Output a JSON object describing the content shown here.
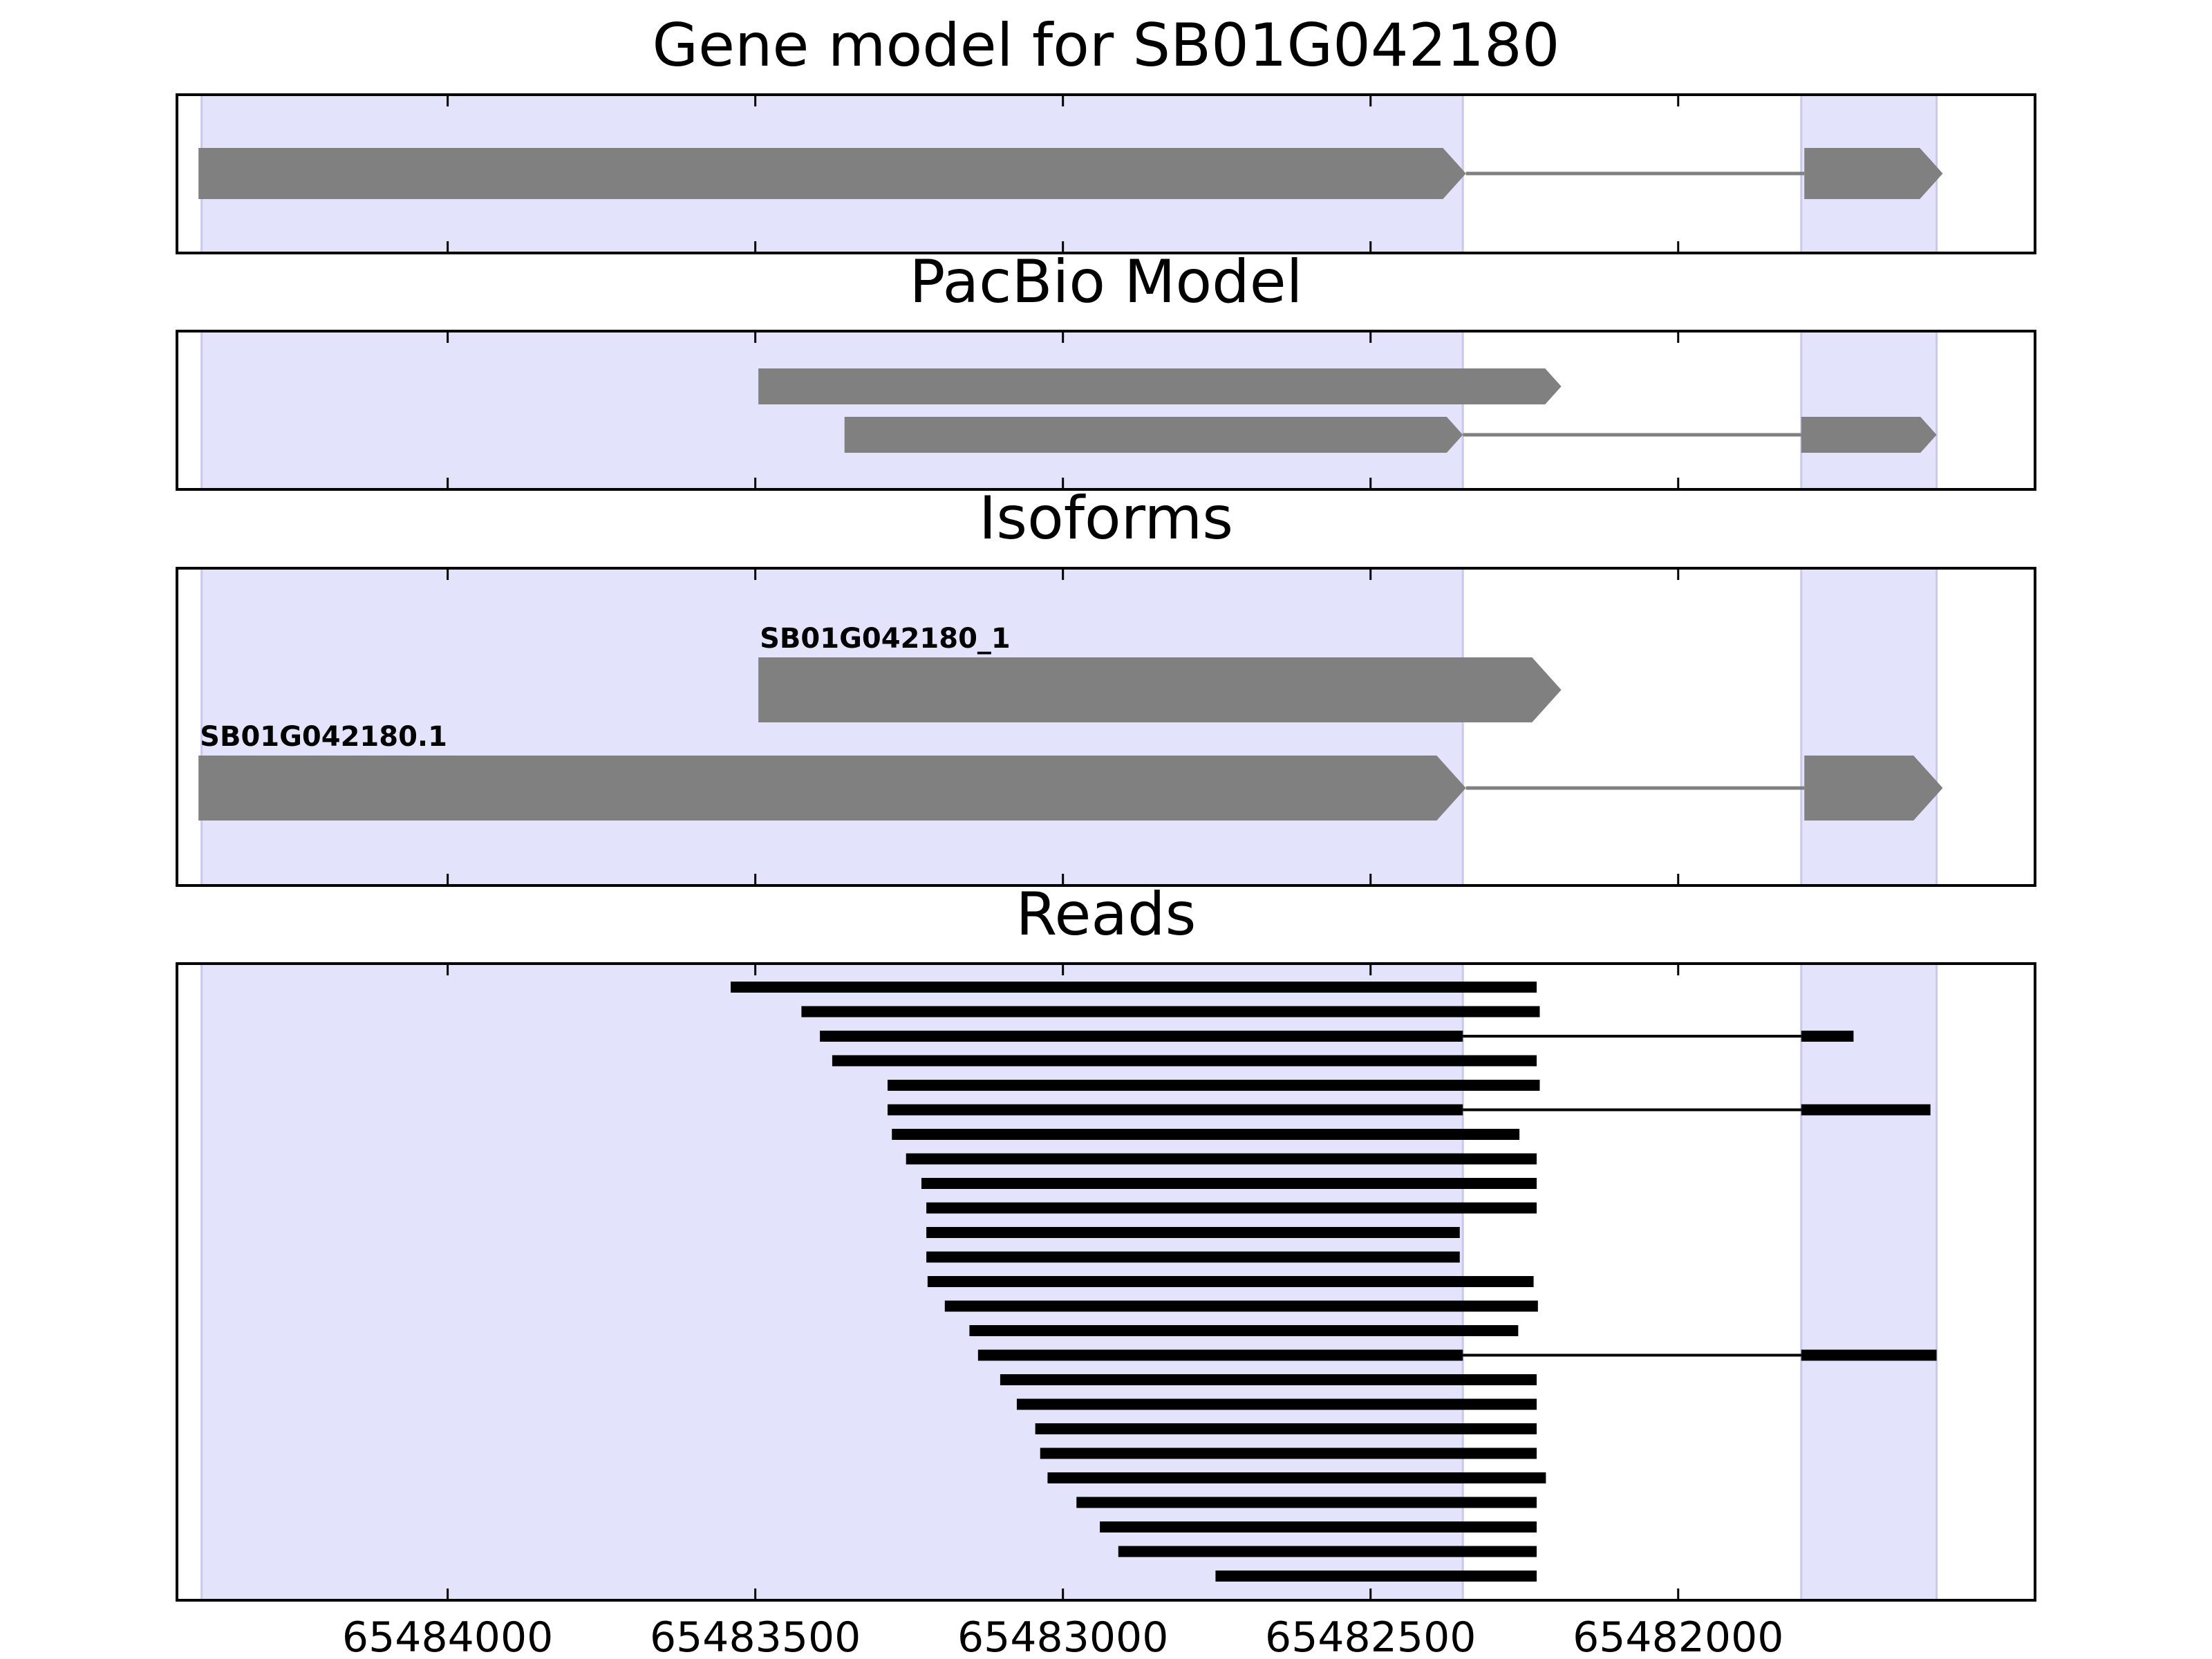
{
  "chart_data": {
    "type": "gene-structure",
    "x_reversed": true,
    "xlim": [
      65484440,
      65481420
    ],
    "xticks": [
      65484000,
      65483500,
      65483000,
      65482500,
      65482000
    ],
    "xtick_labels": [
      "65484000",
      "65483500",
      "65483000",
      "65482500",
      "65482000"
    ],
    "exon_regions": [
      [
        65484400,
        65482350
      ],
      [
        65481800,
        65481580
      ]
    ],
    "colors": {
      "feature": "#808080",
      "read": "#000000",
      "exon_shade": "#e3e3fc",
      "exon_shade_edge": "#c9c9f0",
      "frame": "#000000"
    },
    "panels": [
      {
        "title": "Gene model for SB01G042180",
        "rows": 1,
        "kind": "model",
        "transcripts": [
          {
            "row": 0,
            "label": "",
            "exons": [
              [
                65484405,
                65482345
              ],
              [
                65481795,
                65481570
              ]
            ]
          }
        ]
      },
      {
        "title": "PacBio Model",
        "rows": 2,
        "kind": "model",
        "transcripts": [
          {
            "row": 0,
            "label": "",
            "exons": [
              [
                65483495,
                65482190
              ]
            ]
          },
          {
            "row": 1,
            "label": "",
            "exons": [
              [
                65483355,
                65482350
              ],
              [
                65481800,
                65481580
              ]
            ]
          }
        ]
      },
      {
        "title": "Isoforms",
        "rows": 2,
        "kind": "model",
        "transcripts": [
          {
            "row": 0,
            "label": "SB01G042180_1",
            "exons": [
              [
                65483495,
                65482190
              ]
            ]
          },
          {
            "row": 1,
            "label": "SB01G042180.1",
            "exons": [
              [
                65484405,
                65482345
              ],
              [
                65481795,
                65481570
              ]
            ]
          }
        ]
      },
      {
        "title": "Reads",
        "rows": 25,
        "kind": "reads",
        "transcripts": [
          {
            "row": 0,
            "label": "",
            "exons": [
              [
                65483540,
                65482230
              ]
            ]
          },
          {
            "row": 1,
            "label": "",
            "exons": [
              [
                65483425,
                65482225
              ]
            ]
          },
          {
            "row": 2,
            "label": "",
            "exons": [
              [
                65483395,
                65482350
              ],
              [
                65481800,
                65481715
              ]
            ]
          },
          {
            "row": 3,
            "label": "",
            "exons": [
              [
                65483375,
                65482230
              ]
            ]
          },
          {
            "row": 4,
            "label": "",
            "exons": [
              [
                65483285,
                65482225
              ]
            ]
          },
          {
            "row": 5,
            "label": "",
            "exons": [
              [
                65483285,
                65482350
              ],
              [
                65481800,
                65481590
              ]
            ]
          },
          {
            "row": 6,
            "label": "",
            "exons": [
              [
                65483278,
                65482258
              ]
            ]
          },
          {
            "row": 7,
            "label": "",
            "exons": [
              [
                65483255,
                65482230
              ]
            ]
          },
          {
            "row": 8,
            "label": "",
            "exons": [
              [
                65483230,
                65482230
              ]
            ]
          },
          {
            "row": 9,
            "label": "",
            "exons": [
              [
                65483222,
                65482230
              ]
            ]
          },
          {
            "row": 10,
            "label": "",
            "exons": [
              [
                65483222,
                65482355
              ]
            ]
          },
          {
            "row": 11,
            "label": "",
            "exons": [
              [
                65483222,
                65482355
              ]
            ]
          },
          {
            "row": 12,
            "label": "",
            "exons": [
              [
                65483220,
                65482235
              ]
            ]
          },
          {
            "row": 13,
            "label": "",
            "exons": [
              [
                65483192,
                65482228
              ]
            ]
          },
          {
            "row": 14,
            "label": "",
            "exons": [
              [
                65483152,
                65482260
              ]
            ]
          },
          {
            "row": 15,
            "label": "",
            "exons": [
              [
                65483138,
                65482350
              ],
              [
                65481800,
                65481580
              ]
            ]
          },
          {
            "row": 16,
            "label": "",
            "exons": [
              [
                65483102,
                65482230
              ]
            ]
          },
          {
            "row": 17,
            "label": "",
            "exons": [
              [
                65483075,
                65482230
              ]
            ]
          },
          {
            "row": 18,
            "label": "",
            "exons": [
              [
                65483045,
                65482230
              ]
            ]
          },
          {
            "row": 19,
            "label": "",
            "exons": [
              [
                65483037,
                65482230
              ]
            ]
          },
          {
            "row": 20,
            "label": "",
            "exons": [
              [
                65483025,
                65482215
              ]
            ]
          },
          {
            "row": 21,
            "label": "",
            "exons": [
              [
                65482978,
                65482230
              ]
            ]
          },
          {
            "row": 22,
            "label": "",
            "exons": [
              [
                65482940,
                65482230
              ]
            ]
          },
          {
            "row": 23,
            "label": "",
            "exons": [
              [
                65482910,
                65482230
              ]
            ]
          },
          {
            "row": 24,
            "label": "",
            "exons": [
              [
                65482752,
                65482230
              ]
            ]
          }
        ]
      }
    ]
  }
}
